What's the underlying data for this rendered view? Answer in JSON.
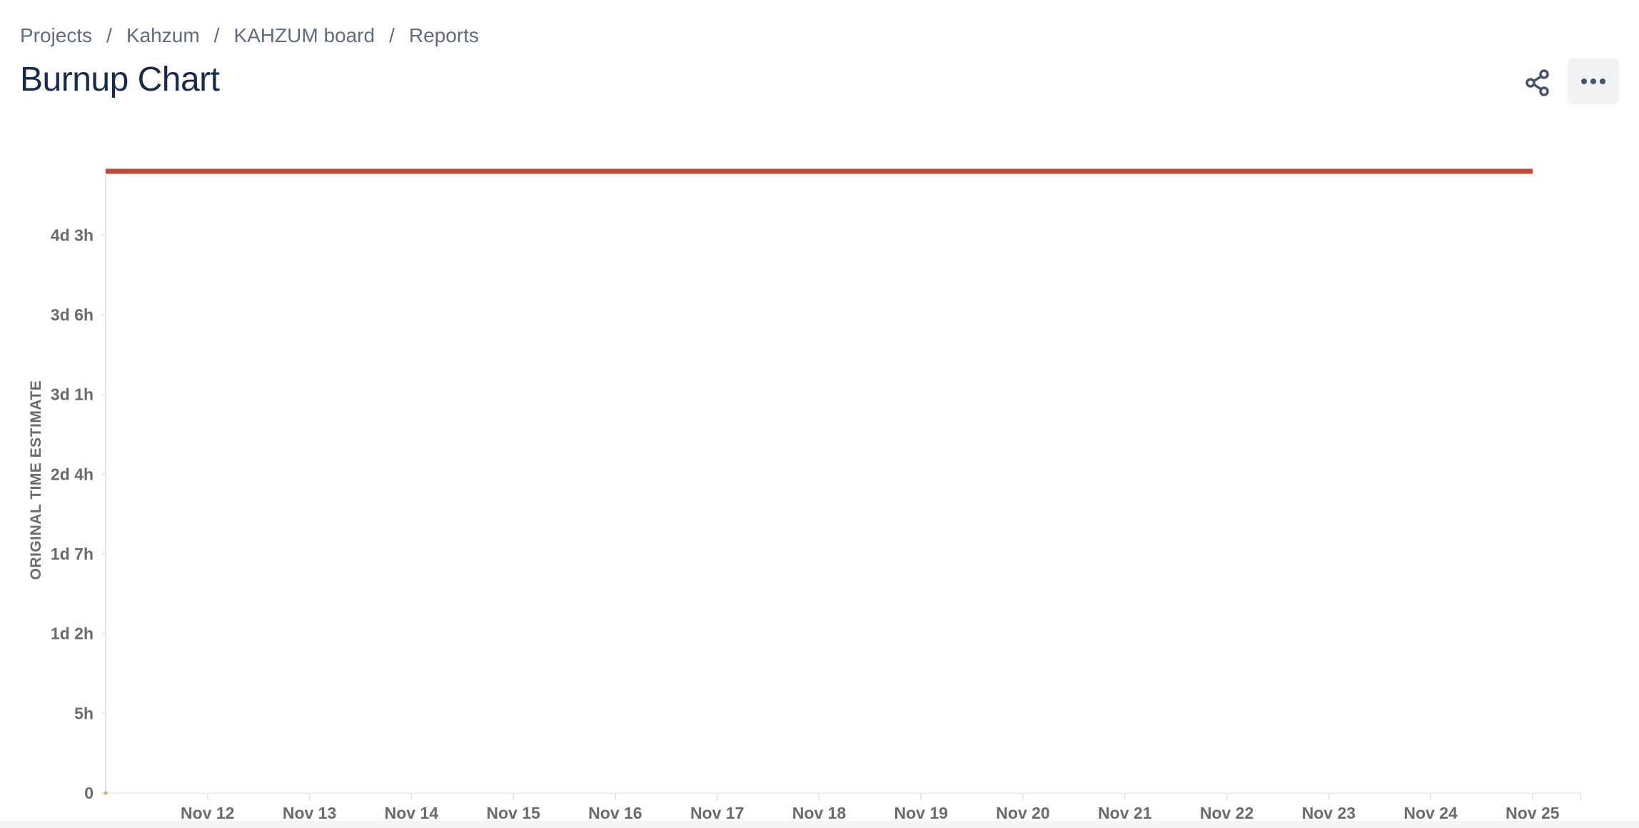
{
  "breadcrumbs": [
    "Projects",
    "Kahzum",
    "KAHZUM board",
    "Reports"
  ],
  "breadcrumb_separator": "/",
  "title": "Burnup Chart",
  "icons": {
    "share": "share-icon",
    "more": "more-horizontal-icon"
  },
  "colors": {
    "scope_line": "#c0473a",
    "title": "#172b4d",
    "breadcrumb": "#5e6c84",
    "axis_text": "#6b6b6b"
  },
  "chart_data": {
    "type": "line",
    "title": "",
    "xlabel": "",
    "ylabel": "ORIGINAL TIME ESTIMATE",
    "x_ticks": [
      "Nov 12",
      "Nov 13",
      "Nov 14",
      "Nov 15",
      "Nov 16",
      "Nov 17",
      "Nov 18",
      "Nov 19",
      "Nov 20",
      "Nov 21",
      "Nov 22",
      "Nov 23",
      "Nov 24",
      "Nov 25"
    ],
    "y_ticks": [
      "0",
      "5h",
      "1d 2h",
      "1d 7h",
      "2d 4h",
      "3d 1h",
      "3d 6h",
      "4d 3h"
    ],
    "y_tick_values": [
      0,
      5,
      10,
      15,
      20,
      25,
      30,
      35
    ],
    "ylim": [
      0,
      39
    ],
    "xlim": [
      "Nov 11",
      "Nov 25"
    ],
    "grid": false,
    "series": [
      {
        "values": [
          {
            "x": "Nov 11",
            "y": 39
          },
          {
            "x": "Nov 25",
            "y": 39
          }
        ]
      }
    ]
  }
}
